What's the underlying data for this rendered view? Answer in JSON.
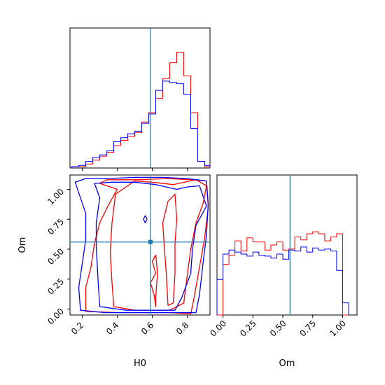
{
  "chart_data": {
    "type": "corner",
    "parameters": [
      "H0",
      "Om"
    ],
    "truth": {
      "H0": 0.59,
      "Om": 0.56
    },
    "colors": {
      "series_a": "#ff0000",
      "series_b": "#0000ff",
      "truth": "#1f77b4"
    },
    "xlabel_h0": "H0",
    "xlabel_om": "Om",
    "ylabel_om": "Om",
    "h0_range": [
      0.13,
      0.93
    ],
    "om_range": [
      -0.05,
      1.12
    ],
    "h0_ticks": [
      "0.2",
      "0.4",
      "0.6",
      "0.8"
    ],
    "om_ticks": [
      "0.00",
      "0.25",
      "0.50",
      "0.75",
      "1.00"
    ],
    "hist_h0": {
      "edges": [
        0.14,
        0.18,
        0.22,
        0.26,
        0.3,
        0.34,
        0.38,
        0.42,
        0.46,
        0.5,
        0.54,
        0.58,
        0.62,
        0.66,
        0.7,
        0.74,
        0.78,
        0.82,
        0.86,
        0.9,
        0.93
      ],
      "series_a": [
        0.01,
        0.01,
        0.03,
        0.06,
        0.09,
        0.12,
        0.17,
        0.21,
        0.24,
        0.27,
        0.35,
        0.42,
        0.53,
        0.68,
        0.8,
        0.88,
        0.7,
        0.42,
        0.05,
        0.01
      ],
      "series_b": [
        0.01,
        0.02,
        0.05,
        0.08,
        0.1,
        0.13,
        0.2,
        0.23,
        0.26,
        0.28,
        0.34,
        0.41,
        0.59,
        0.66,
        0.65,
        0.64,
        0.56,
        0.3,
        0.05,
        0.02
      ]
    },
    "hist_om": {
      "edges": [
        -0.05,
        0.0,
        0.05,
        0.1,
        0.15,
        0.2,
        0.25,
        0.3,
        0.35,
        0.4,
        0.45,
        0.5,
        0.55,
        0.6,
        0.65,
        0.7,
        0.75,
        0.8,
        0.85,
        0.9,
        0.95,
        1.0,
        1.05
      ],
      "series_a": [
        0.0,
        0.5,
        0.59,
        0.73,
        0.63,
        0.76,
        0.72,
        0.72,
        0.64,
        0.69,
        0.72,
        0.64,
        0.65,
        0.77,
        0.74,
        0.8,
        0.82,
        0.8,
        0.73,
        0.77,
        0.8,
        0.0
      ],
      "series_b": [
        0.35,
        0.6,
        0.64,
        0.62,
        0.6,
        0.58,
        0.62,
        0.59,
        0.58,
        0.56,
        0.6,
        0.55,
        0.64,
        0.63,
        0.67,
        0.62,
        0.66,
        0.64,
        0.65,
        0.63,
        0.44,
        0.12
      ]
    },
    "contours_a": [
      [
        [
          0.38,
          0.02
        ],
        [
          0.37,
          0.22
        ],
        [
          0.36,
          0.47
        ],
        [
          0.37,
          0.72
        ],
        [
          0.39,
          0.96
        ],
        [
          0.5,
          1.07
        ],
        [
          0.6,
          1.06
        ],
        [
          0.72,
          1.04
        ],
        [
          0.85,
          1.08
        ],
        [
          0.91,
          1.03
        ],
        [
          0.89,
          0.88
        ],
        [
          0.85,
          0.72
        ],
        [
          0.82,
          0.5
        ],
        [
          0.8,
          0.28
        ],
        [
          0.78,
          0.05
        ],
        [
          0.7,
          -0.01
        ],
        [
          0.6,
          -0.01
        ],
        [
          0.5,
          -0.01
        ],
        [
          0.38,
          0.02
        ]
      ],
      [
        [
          0.22,
          -0.02
        ],
        [
          0.22,
          0.18
        ],
        [
          0.25,
          0.35
        ],
        [
          0.27,
          0.55
        ],
        [
          0.3,
          0.72
        ],
        [
          0.35,
          0.87
        ],
        [
          0.4,
          1.0
        ],
        [
          0.3,
          1.05
        ],
        [
          0.34,
          1.08
        ],
        [
          0.52,
          1.08
        ],
        [
          0.68,
          1.09
        ],
        [
          0.83,
          1.08
        ],
        [
          0.91,
          1.07
        ],
        [
          0.92,
          0.85
        ],
        [
          0.9,
          0.6
        ],
        [
          0.87,
          0.35
        ],
        [
          0.84,
          0.1
        ],
        [
          0.82,
          -0.04
        ],
        [
          0.7,
          -0.03
        ],
        [
          0.55,
          -0.03
        ],
        [
          0.4,
          -0.03
        ],
        [
          0.22,
          -0.02
        ]
      ],
      [
        [
          0.69,
          0.03
        ],
        [
          0.68,
          0.3
        ],
        [
          0.67,
          0.5
        ],
        [
          0.66,
          0.72
        ],
        [
          0.69,
          0.9
        ],
        [
          0.73,
          0.96
        ],
        [
          0.74,
          0.75
        ],
        [
          0.73,
          0.55
        ],
        [
          0.73,
          0.3
        ],
        [
          0.72,
          0.05
        ],
        [
          0.69,
          0.03
        ]
      ],
      [
        [
          0.62,
          0.02
        ],
        [
          0.61,
          0.12
        ],
        [
          0.59,
          0.22
        ],
        [
          0.62,
          0.3
        ],
        [
          0.6,
          0.4
        ],
        [
          0.62,
          0.45
        ],
        [
          0.63,
          0.3
        ],
        [
          0.62,
          0.1
        ],
        [
          0.62,
          0.02
        ]
      ]
    ],
    "contours_b": [
      [
        [
          0.3,
          0.02
        ],
        [
          0.29,
          0.25
        ],
        [
          0.28,
          0.52
        ],
        [
          0.28,
          0.72
        ],
        [
          0.3,
          0.93
        ],
        [
          0.27,
          1.05
        ],
        [
          0.37,
          1.06
        ],
        [
          0.5,
          1.06
        ],
        [
          0.62,
          1.04
        ],
        [
          0.74,
          1.0
        ],
        [
          0.8,
          1.02
        ],
        [
          0.87,
          1.03
        ],
        [
          0.91,
          0.86
        ],
        [
          0.85,
          0.7
        ],
        [
          0.83,
          0.5
        ],
        [
          0.82,
          0.3
        ],
        [
          0.77,
          0.1
        ],
        [
          0.73,
          -0.01
        ],
        [
          0.6,
          -0.01
        ],
        [
          0.45,
          -0.01
        ],
        [
          0.3,
          0.02
        ]
      ],
      [
        [
          0.19,
          -0.01
        ],
        [
          0.18,
          0.18
        ],
        [
          0.2,
          0.38
        ],
        [
          0.22,
          0.58
        ],
        [
          0.22,
          0.8
        ],
        [
          0.18,
          0.97
        ],
        [
          0.16,
          1.06
        ],
        [
          0.22,
          1.09
        ],
        [
          0.34,
          1.09
        ],
        [
          0.5,
          1.1
        ],
        [
          0.66,
          1.1
        ],
        [
          0.8,
          1.09
        ],
        [
          0.91,
          1.07
        ],
        [
          0.92,
          0.88
        ],
        [
          0.91,
          0.62
        ],
        [
          0.89,
          0.38
        ],
        [
          0.87,
          0.12
        ],
        [
          0.85,
          -0.03
        ],
        [
          0.7,
          -0.03
        ],
        [
          0.5,
          -0.03
        ],
        [
          0.33,
          -0.03
        ],
        [
          0.19,
          -0.01
        ]
      ],
      [
        [
          0.56,
          0.78
        ],
        [
          0.55,
          0.75
        ],
        [
          0.56,
          0.72
        ],
        [
          0.57,
          0.75
        ],
        [
          0.56,
          0.78
        ]
      ]
    ]
  }
}
